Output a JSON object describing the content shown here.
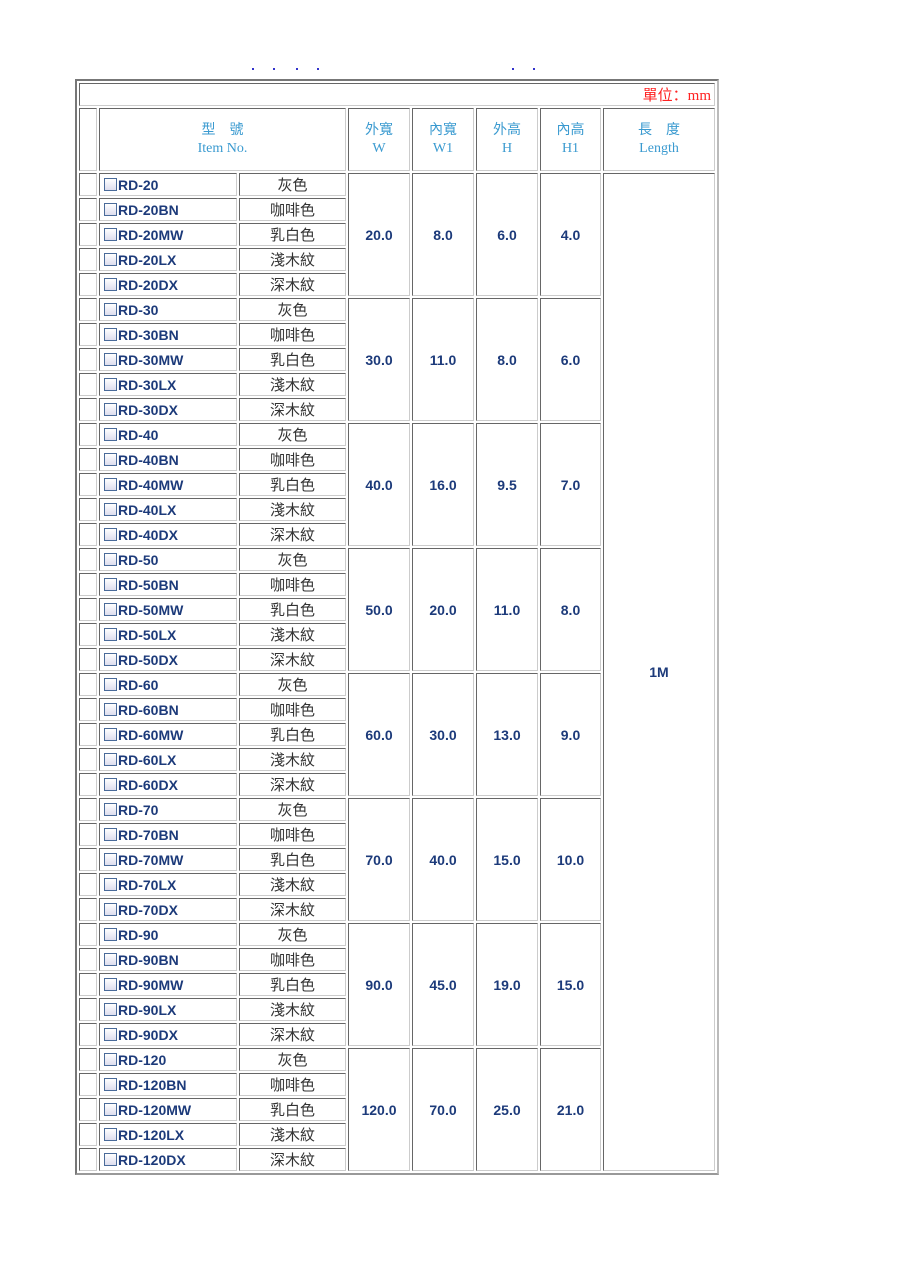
{
  "unit_label": "單位：mm",
  "headers": {
    "item": [
      "型　號",
      "Item No."
    ],
    "w": [
      "外寬",
      "W"
    ],
    "w1": [
      "內寬",
      "W1"
    ],
    "h": [
      "外高",
      "H"
    ],
    "h1": [
      "內高",
      "H1"
    ],
    "length": [
      "長　度",
      "Length"
    ]
  },
  "length_value": "1M",
  "colors": [
    "灰色",
    "咖啡色",
    "乳白色",
    "淺木紋",
    "深木紋"
  ],
  "suffixes": [
    "",
    "BN",
    "MW",
    "LX",
    "DX"
  ],
  "groups": [
    {
      "base": "RD-20",
      "w": "20.0",
      "w1": "8.0",
      "h": "6.0",
      "h1": "4.0"
    },
    {
      "base": "RD-30",
      "w": "30.0",
      "w1": "11.0",
      "h": "8.0",
      "h1": "6.0"
    },
    {
      "base": "RD-40",
      "w": "40.0",
      "w1": "16.0",
      "h": "9.5",
      "h1": "7.0"
    },
    {
      "base": "RD-50",
      "w": "50.0",
      "w1": "20.0",
      "h": "11.0",
      "h1": "8.0"
    },
    {
      "base": "RD-60",
      "w": "60.0",
      "w1": "30.0",
      "h": "13.0",
      "h1": "9.0"
    },
    {
      "base": "RD-70",
      "w": "70.0",
      "w1": "40.0",
      "h": "15.0",
      "h1": "10.0"
    },
    {
      "base": "RD-90",
      "w": "90.0",
      "w1": "45.0",
      "h": "19.0",
      "h1": "15.0"
    },
    {
      "base": "RD-120",
      "w": "120.0",
      "w1": "70.0",
      "h": "25.0",
      "h1": "21.0"
    }
  ]
}
